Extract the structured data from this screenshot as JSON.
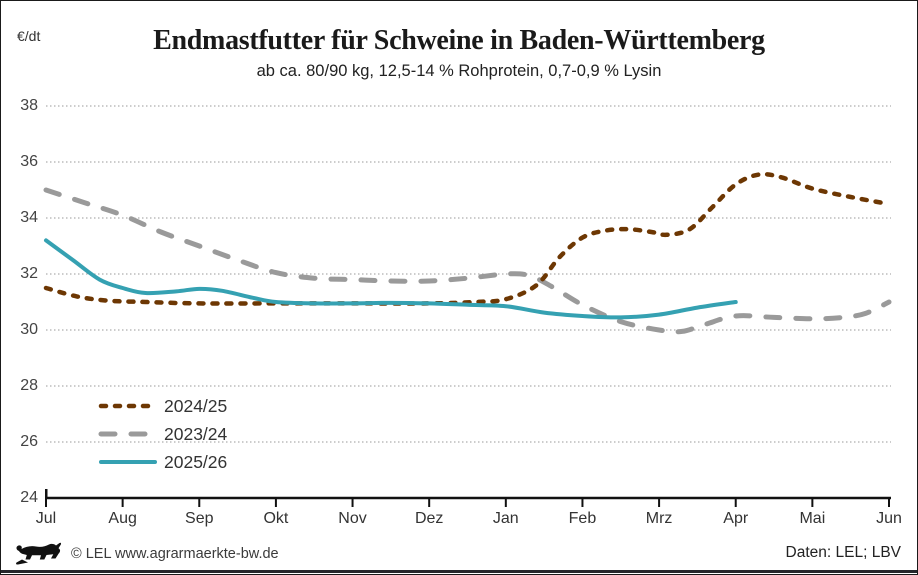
{
  "header": {
    "unit_label": "€/dt",
    "title": "Endmastfutter für Schweine in Baden-Württemberg",
    "subtitle": "ab ca. 80/90 kg, 12,5-14 % Rohprotein, 0,7-0,9 % Lysin"
  },
  "footer": {
    "copyright": "© LEL www.agrarmaerkte-bw.de",
    "source": "Daten: LEL; LBV",
    "logo_icon": "bw-lion-logo"
  },
  "colors": {
    "grid": "#9a9a9a",
    "axis": "#111111",
    "accent_bar": "#26262b"
  },
  "chart_data": {
    "type": "line",
    "title": "Endmastfutter für Schweine in Baden-Württemberg",
    "subtitle": "ab ca. 80/90 kg, 12,5-14 % Rohprotein, 0,7-0,9 % Lysin",
    "ylabel": "€/dt",
    "xlabel": "",
    "x_categories": [
      "Jul",
      "Aug",
      "Sep",
      "Okt",
      "Nov",
      "Dez",
      "Jan",
      "Feb",
      "Mrz",
      "Apr",
      "Mai",
      "Jun"
    ],
    "y_ticks": [
      38,
      36,
      34,
      32,
      30,
      28,
      26,
      24
    ],
    "ylim": [
      24,
      38
    ],
    "grid": "horizontal-dotted",
    "legend_position": "inside-lower-left",
    "draw_order": [
      1,
      0,
      2
    ],
    "series": [
      {
        "name": "2024/25",
        "color": "#6d3703",
        "style": "dashed-short",
        "dash": "5 9",
        "width": 4.5,
        "points": [
          [
            0,
            31.5
          ],
          [
            0.4,
            31.2
          ],
          [
            0.8,
            31.05
          ],
          [
            1.3,
            31.0
          ],
          [
            2,
            30.95
          ],
          [
            3,
            30.95
          ],
          [
            4,
            30.95
          ],
          [
            5,
            30.95
          ],
          [
            5.6,
            31.0
          ],
          [
            6,
            31.1
          ],
          [
            6.4,
            31.6
          ],
          [
            6.7,
            32.6
          ],
          [
            7,
            33.3
          ],
          [
            7.3,
            33.55
          ],
          [
            7.6,
            33.6
          ],
          [
            7.9,
            33.5
          ],
          [
            8.1,
            33.4
          ],
          [
            8.4,
            33.6
          ],
          [
            8.7,
            34.4
          ],
          [
            9,
            35.2
          ],
          [
            9.3,
            35.55
          ],
          [
            9.6,
            35.45
          ],
          [
            10,
            35.05
          ],
          [
            10.5,
            34.75
          ],
          [
            11,
            34.5
          ]
        ]
      },
      {
        "name": "2023/24",
        "color": "#9a9a9a",
        "style": "dashed-long",
        "dash": "14 16",
        "width": 5,
        "points": [
          [
            0,
            35.0
          ],
          [
            0.5,
            34.55
          ],
          [
            1,
            34.1
          ],
          [
            1.5,
            33.5
          ],
          [
            2,
            33.0
          ],
          [
            2.5,
            32.5
          ],
          [
            3,
            32.05
          ],
          [
            3.5,
            31.85
          ],
          [
            4,
            31.8
          ],
          [
            4.5,
            31.75
          ],
          [
            5,
            31.75
          ],
          [
            5.5,
            31.85
          ],
          [
            6,
            32.0
          ],
          [
            6.3,
            31.95
          ],
          [
            6.6,
            31.55
          ],
          [
            7,
            30.9
          ],
          [
            7.5,
            30.3
          ],
          [
            8,
            30.0
          ],
          [
            8.3,
            29.95
          ],
          [
            8.6,
            30.2
          ],
          [
            9,
            30.5
          ],
          [
            9.5,
            30.45
          ],
          [
            10,
            30.4
          ],
          [
            10.4,
            30.45
          ],
          [
            10.7,
            30.6
          ],
          [
            11,
            31.0
          ]
        ]
      },
      {
        "name": "2025/26",
        "color": "#35a1b2",
        "style": "solid",
        "dash": "",
        "width": 4,
        "points": [
          [
            0,
            33.2
          ],
          [
            0.35,
            32.5
          ],
          [
            0.7,
            31.8
          ],
          [
            1,
            31.5
          ],
          [
            1.3,
            31.32
          ],
          [
            1.7,
            31.38
          ],
          [
            2,
            31.47
          ],
          [
            2.3,
            31.4
          ],
          [
            2.7,
            31.15
          ],
          [
            3,
            31.0
          ],
          [
            3.5,
            30.95
          ],
          [
            4,
            30.95
          ],
          [
            4.5,
            30.97
          ],
          [
            5,
            30.95
          ],
          [
            5.5,
            30.9
          ],
          [
            6,
            30.85
          ],
          [
            6.5,
            30.62
          ],
          [
            7,
            30.5
          ],
          [
            7.5,
            30.45
          ],
          [
            8,
            30.55
          ],
          [
            8.5,
            30.8
          ],
          [
            9,
            31.0
          ]
        ]
      }
    ]
  }
}
